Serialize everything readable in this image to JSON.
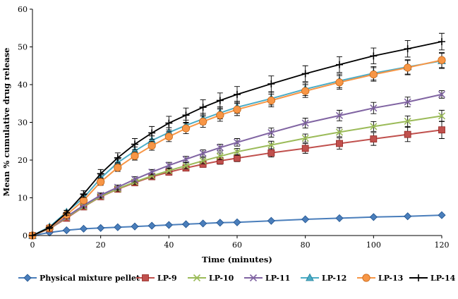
{
  "chart_data": {
    "type": "line",
    "title": "",
    "xlabel": "Time (minutes)",
    "ylabel": "Mean % cumulative drug release",
    "xlim": [
      0,
      120
    ],
    "ylim": [
      0,
      60
    ],
    "xticks": [
      0,
      20,
      40,
      60,
      80,
      100,
      120
    ],
    "yticks": [
      0,
      10,
      20,
      30,
      40,
      50,
      60
    ],
    "grid": false,
    "legend_position": "bottom",
    "series": [
      {
        "name": "Physical mixture pellet",
        "color": "#4A7EBB",
        "marker": "diamond",
        "x": [
          0,
          5,
          10,
          15,
          20,
          25,
          30,
          35,
          40,
          45,
          50,
          55,
          60,
          70,
          80,
          90,
          100,
          110,
          120
        ],
        "y": [
          0,
          0.8,
          1.4,
          1.8,
          2.0,
          2.2,
          2.4,
          2.6,
          2.8,
          3.0,
          3.2,
          3.4,
          3.5,
          3.9,
          4.3,
          4.6,
          4.9,
          5.1,
          5.4
        ],
        "err": [
          0,
          0.1,
          0.1,
          0.1,
          0.1,
          0.1,
          0.1,
          0.1,
          0.1,
          0.1,
          0.1,
          0.1,
          0.1,
          0.1,
          0.1,
          0.1,
          0.1,
          0.1,
          0.2
        ]
      },
      {
        "name": "LP-9",
        "color": "#C0504D",
        "marker": "square",
        "x": [
          0,
          5,
          10,
          15,
          20,
          25,
          30,
          35,
          40,
          45,
          50,
          55,
          60,
          70,
          80,
          90,
          100,
          110,
          120
        ],
        "y": [
          0,
          1.8,
          4.6,
          7.6,
          10.3,
          12.3,
          14.0,
          15.6,
          16.8,
          17.9,
          18.9,
          19.8,
          20.5,
          21.9,
          23.1,
          24.4,
          25.6,
          26.8,
          28.0
        ],
        "err": [
          0,
          0.2,
          0.4,
          0.5,
          0.5,
          0.6,
          0.6,
          0.7,
          0.7,
          0.8,
          0.8,
          0.9,
          0.9,
          1.1,
          1.3,
          1.5,
          1.7,
          1.9,
          2.3
        ]
      },
      {
        "name": "LP-10",
        "color": "#9BBB59",
        "marker": "x",
        "x": [
          0,
          5,
          10,
          15,
          20,
          25,
          30,
          35,
          40,
          45,
          50,
          55,
          60,
          70,
          80,
          90,
          100,
          110,
          120
        ],
        "y": [
          0,
          1.9,
          4.8,
          7.7,
          10.4,
          12.4,
          14.2,
          15.8,
          17.2,
          18.5,
          19.8,
          21.0,
          22.2,
          24.0,
          25.8,
          27.4,
          28.9,
          30.3,
          31.7
        ],
        "err": [
          0,
          0.2,
          0.4,
          0.5,
          0.5,
          0.6,
          0.6,
          0.7,
          0.7,
          0.8,
          0.8,
          0.9,
          0.9,
          1.0,
          1.1,
          1.2,
          1.3,
          1.4,
          1.5
        ]
      },
      {
        "name": "LP-11",
        "color": "#8064A2",
        "marker": "x",
        "x": [
          0,
          5,
          10,
          15,
          20,
          25,
          30,
          35,
          40,
          45,
          50,
          55,
          60,
          70,
          80,
          90,
          100,
          110,
          120
        ],
        "y": [
          0,
          2.0,
          5.0,
          8.0,
          10.7,
          12.8,
          14.9,
          16.8,
          18.6,
          20.2,
          21.8,
          23.3,
          24.7,
          27.3,
          29.8,
          31.8,
          33.8,
          35.4,
          37.4
        ],
        "err": [
          0,
          0.2,
          0.4,
          0.5,
          0.6,
          0.6,
          0.7,
          0.7,
          0.8,
          0.8,
          0.9,
          0.9,
          1.0,
          1.2,
          1.3,
          1.4,
          1.5,
          1.3,
          1.0
        ]
      },
      {
        "name": "LP-12",
        "color": "#4BACC6",
        "marker": "triangle",
        "x": [
          0,
          5,
          10,
          15,
          20,
          25,
          30,
          35,
          40,
          45,
          50,
          55,
          60,
          70,
          80,
          90,
          100,
          110,
          120
        ],
        "y": [
          0,
          2.3,
          6.2,
          10.0,
          15.2,
          19.3,
          22.4,
          25.2,
          27.3,
          29.2,
          30.9,
          32.5,
          34.0,
          36.3,
          38.8,
          41.0,
          43.0,
          44.7,
          46.3
        ],
        "err": [
          0,
          0.2,
          0.5,
          0.7,
          0.9,
          1.0,
          1.1,
          1.2,
          1.3,
          1.4,
          1.5,
          1.6,
          1.6,
          1.7,
          1.7,
          1.8,
          1.8,
          1.9,
          2.0
        ]
      },
      {
        "name": "LP-13",
        "color": "#F79646",
        "marker": "circle",
        "x": [
          0,
          5,
          10,
          15,
          20,
          25,
          30,
          35,
          40,
          45,
          50,
          55,
          60,
          70,
          80,
          90,
          100,
          110,
          120
        ],
        "y": [
          0,
          2.0,
          5.5,
          9.3,
          14.2,
          18.0,
          21.1,
          23.8,
          26.2,
          28.4,
          30.2,
          31.9,
          33.4,
          35.8,
          38.3,
          40.6,
          42.7,
          44.5,
          46.5
        ],
        "err": [
          0,
          0.2,
          0.5,
          0.7,
          0.9,
          1.0,
          1.1,
          1.2,
          1.3,
          1.4,
          1.5,
          1.6,
          1.6,
          1.7,
          1.7,
          1.8,
          1.8,
          1.9,
          2.0
        ]
      },
      {
        "name": "LP-14",
        "color": "#000000",
        "marker": "plus",
        "x": [
          0,
          5,
          10,
          15,
          20,
          25,
          30,
          35,
          40,
          45,
          50,
          55,
          60,
          70,
          80,
          90,
          100,
          110,
          120
        ],
        "y": [
          0,
          2.1,
          6.0,
          11.0,
          16.4,
          20.6,
          24.2,
          27.2,
          29.8,
          31.9,
          34.0,
          35.8,
          37.4,
          40.2,
          42.9,
          45.3,
          47.6,
          49.5,
          51.4
        ],
        "err": [
          0,
          0.3,
          0.6,
          0.9,
          1.1,
          1.3,
          1.5,
          1.7,
          1.8,
          1.9,
          2.0,
          2.0,
          2.1,
          2.1,
          2.1,
          2.1,
          2.1,
          2.2,
          2.2
        ]
      }
    ]
  }
}
